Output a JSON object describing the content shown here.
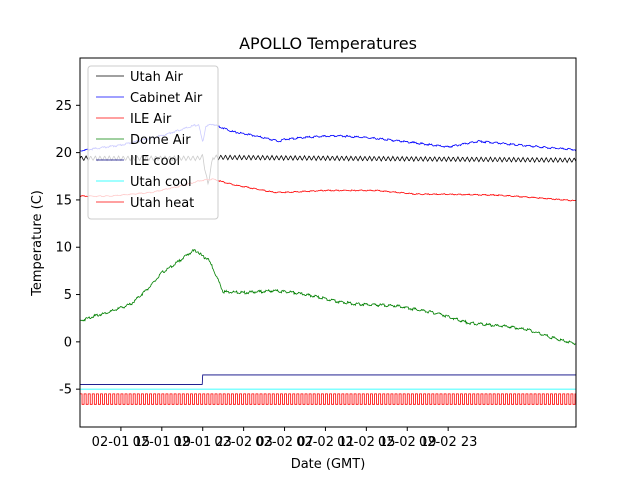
{
  "chart_data": {
    "type": "line",
    "title": "APOLLO Temperatures",
    "xlabel": "Date (GMT)",
    "ylabel": "Temperature (C)",
    "xlim": [
      11.0,
      59.5
    ],
    "ylim": [
      -9,
      30
    ],
    "xticks": [
      {
        "value": 15,
        "label": "02-01 15"
      },
      {
        "value": 19,
        "label": "02-01 19"
      },
      {
        "value": 23,
        "label": "02-01 23"
      },
      {
        "value": 27,
        "label": "02-02 03"
      },
      {
        "value": 31,
        "label": "02-02 07"
      },
      {
        "value": 35,
        "label": "02-02 11"
      },
      {
        "value": 39,
        "label": "02-02 15"
      },
      {
        "value": 43,
        "label": "02-02 19"
      },
      {
        "value": 47,
        "label": "02-02 23"
      }
    ],
    "yticks": [
      -5,
      0,
      5,
      10,
      15,
      20,
      25
    ],
    "legend_position": "upper-left",
    "series": [
      {
        "name": "Utah Air",
        "color": "#000000",
        "x": [
          11.0,
          22.6,
          23.0,
          23.5,
          24.0,
          59.5
        ],
        "values": [
          19.4,
          19.4,
          19.6,
          16.6,
          19.5,
          19.2
        ],
        "oscillation": 0.5
      },
      {
        "name": "Cabinet Air",
        "color": "#0000ff",
        "x": [
          11.0,
          15.0,
          19.0,
          22.0,
          22.6,
          23.0,
          23.3,
          24.0,
          26.0,
          28.0,
          30.5,
          31.0,
          33.0,
          36.0,
          40.0,
          44.0,
          47.0,
          50.0,
          52.0,
          54.0,
          57.0,
          59.5
        ],
        "values": [
          20.2,
          20.8,
          21.8,
          22.8,
          23.0,
          21.0,
          22.8,
          23.0,
          22.2,
          21.8,
          21.2,
          21.4,
          21.6,
          21.8,
          21.5,
          21.0,
          20.6,
          21.2,
          21.0,
          20.8,
          20.5,
          20.3
        ],
        "oscillation": 0.1
      },
      {
        "name": "ILE Air",
        "color": "#ff0000",
        "x": [
          11.0,
          14.0,
          18.0,
          21.0,
          22.6,
          23.2,
          24.0,
          26.0,
          30.0,
          31.0,
          35.0,
          40.0,
          44.0,
          47.0,
          52.0,
          56.0,
          59.5
        ],
        "values": [
          15.4,
          15.4,
          15.8,
          16.5,
          17.0,
          17.1,
          17.2,
          16.6,
          15.8,
          15.8,
          16.0,
          16.0,
          15.6,
          15.6,
          15.5,
          15.2,
          14.9
        ],
        "oscillation": 0.06
      },
      {
        "name": "Dome Air",
        "color": "#008000",
        "x": [
          11.0,
          12.0,
          14.0,
          16.0,
          18.0,
          19.0,
          20.0,
          21.0,
          22.0,
          22.5,
          23.0,
          23.5,
          24.0,
          25.0,
          27.0,
          30.0,
          32.0,
          34.0,
          36.0,
          38.0,
          40.0,
          42.0,
          44.0,
          46.0,
          49.0,
          51.0,
          53.0,
          55.0,
          57.0,
          59.5
        ],
        "values": [
          2.2,
          2.6,
          3.2,
          4.0,
          6.0,
          7.3,
          8.0,
          8.8,
          9.6,
          9.6,
          9.0,
          8.8,
          7.8,
          5.3,
          5.2,
          5.4,
          5.2,
          4.8,
          4.3,
          4.0,
          3.9,
          3.8,
          3.4,
          3.0,
          2.0,
          1.8,
          1.6,
          1.2,
          0.5,
          -0.2
        ],
        "oscillation": 0.15
      },
      {
        "name": "ILE cool",
        "color": "#000080",
        "x": [
          11.0,
          22.95,
          23.0,
          59.5
        ],
        "values": [
          -4.5,
          -4.5,
          -3.5,
          -3.5
        ],
        "oscillation": 0
      },
      {
        "name": "Utah cool",
        "color": "#00ffff",
        "x": [
          11.0,
          59.5
        ],
        "values": [
          -5.0,
          -5.0
        ],
        "oscillation": 0
      },
      {
        "name": "Utah heat",
        "color": "#ff0000",
        "x": [
          11.0,
          59.5
        ],
        "values": [
          -5.7,
          -5.7
        ],
        "oscillation": 0,
        "square_wave": {
          "high": -5.5,
          "low": -6.6,
          "period": 0.4
        }
      }
    ]
  }
}
